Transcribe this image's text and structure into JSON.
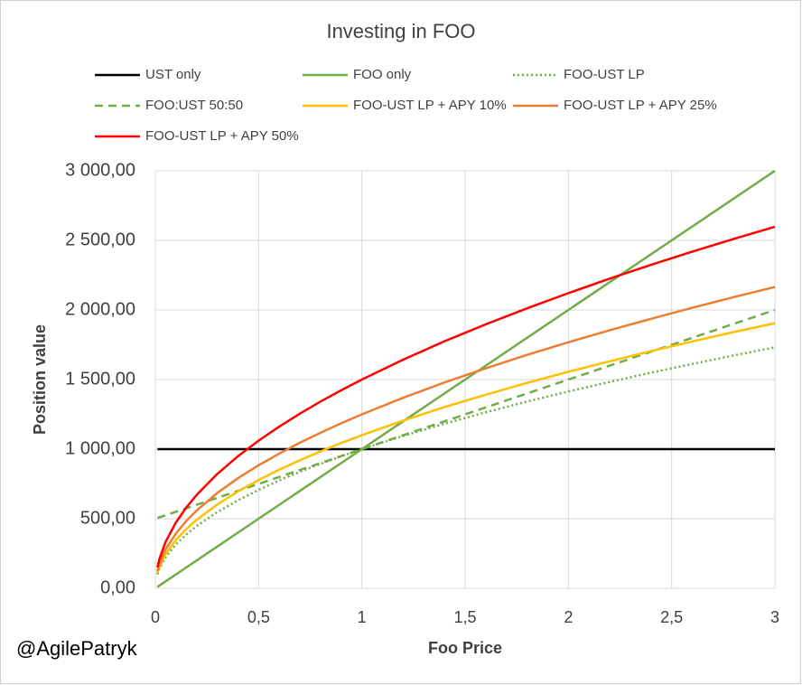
{
  "chart_data": {
    "type": "line",
    "title": "Investing in FOO",
    "xlabel": "Foo Price",
    "ylabel": "Position value",
    "annotation": "@AgilePatryk",
    "x": [
      0.01,
      0.02,
      0.05,
      0.1,
      0.15,
      0.2,
      0.3,
      0.4,
      0.5,
      0.6,
      0.7,
      0.8,
      0.9,
      1,
      1.2,
      1.4,
      1.6,
      1.8,
      2,
      2.2,
      2.4,
      2.6,
      2.8,
      3
    ],
    "series": [
      {
        "name": "UST only",
        "color": "#000000",
        "dash": "solid",
        "values": [
          1000,
          1000,
          1000,
          1000,
          1000,
          1000,
          1000,
          1000,
          1000,
          1000,
          1000,
          1000,
          1000,
          1000,
          1000,
          1000,
          1000,
          1000,
          1000,
          1000,
          1000,
          1000,
          1000,
          1000
        ]
      },
      {
        "name": "FOO only",
        "color": "#70ad47",
        "dash": "solid",
        "values": [
          10,
          20,
          50,
          100,
          150,
          200,
          300,
          400,
          500,
          600,
          700,
          800,
          900,
          1000,
          1200,
          1400,
          1600,
          1800,
          2000,
          2200,
          2400,
          2600,
          2800,
          3000
        ]
      },
      {
        "name": "FOO-UST LP",
        "color": "#70ad47",
        "dash": "dotted",
        "values": [
          100,
          141,
          224,
          316,
          387,
          447,
          548,
          632,
          707,
          775,
          837,
          894,
          949,
          1000,
          1095,
          1183,
          1265,
          1342,
          1414,
          1483,
          1549,
          1612,
          1673,
          1732
        ]
      },
      {
        "name": "FOO:UST 50:50",
        "color": "#70ad47",
        "dash": "dashed",
        "values": [
          505,
          510,
          525,
          550,
          575,
          600,
          650,
          700,
          750,
          800,
          850,
          900,
          950,
          1000,
          1100,
          1200,
          1300,
          1400,
          1500,
          1600,
          1700,
          1800,
          1900,
          2000
        ]
      },
      {
        "name": "FOO-UST LP + APY 10%",
        "color": "#ffc000",
        "dash": "solid",
        "values": [
          110,
          156,
          246,
          348,
          426,
          492,
          602,
          696,
          778,
          852,
          920,
          984,
          1044,
          1100,
          1205,
          1302,
          1391,
          1476,
          1556,
          1631,
          1704,
          1774,
          1841,
          1905
        ]
      },
      {
        "name": "FOO-UST LP + APY 25%",
        "color": "#ed7d31",
        "dash": "solid",
        "values": [
          125,
          177,
          280,
          395,
          484,
          559,
          685,
          791,
          884,
          968,
          1046,
          1118,
          1186,
          1250,
          1369,
          1479,
          1581,
          1677,
          1768,
          1854,
          1936,
          2016,
          2092,
          2165
        ]
      },
      {
        "name": "FOO-UST LP + APY 50%",
        "color": "#ff0000",
        "dash": "solid",
        "values": [
          150,
          212,
          335,
          474,
          581,
          671,
          822,
          949,
          1061,
          1162,
          1255,
          1342,
          1423,
          1500,
          1643,
          1775,
          1897,
          2012,
          2121,
          2225,
          2324,
          2419,
          2510,
          2598
        ]
      }
    ],
    "xlim": [
      0,
      3
    ],
    "xticks": [
      0,
      {
        "value": 0.5,
        "label": "0,5"
      },
      1,
      {
        "value": 1.5,
        "label": "1,5"
      },
      2,
      {
        "value": 2.5,
        "label": "2,5"
      },
      3
    ],
    "ylim": [
      0,
      3000
    ],
    "yticks": [
      {
        "value": 0,
        "label": "0,00"
      },
      {
        "value": 500,
        "label": "500,00"
      },
      {
        "value": 1000,
        "label": "1 000,00"
      },
      {
        "value": 1500,
        "label": "1 500,00"
      },
      {
        "value": 2000,
        "label": "2 000,00"
      },
      {
        "value": 2500,
        "label": "2 500,00"
      },
      {
        "value": 3000,
        "label": "3 000,00"
      }
    ],
    "grid": true,
    "legend": "top"
  }
}
